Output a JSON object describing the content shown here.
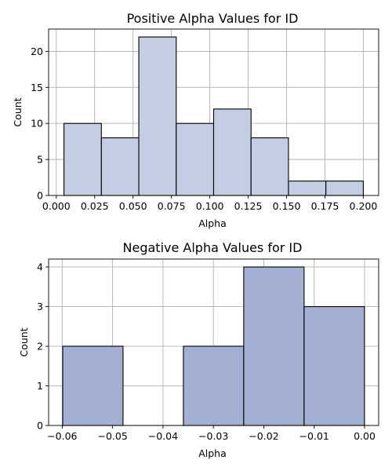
{
  "chart_data": [
    {
      "type": "bar",
      "title": "Positive Alpha Values for ID",
      "xlabel": "Alpha",
      "ylabel": "Count",
      "bin_edges": [
        0.005,
        0.029375,
        0.05375,
        0.078125,
        0.1025,
        0.126875,
        0.15125,
        0.175625,
        0.2
      ],
      "values": [
        10,
        8,
        22,
        10,
        12,
        8,
        2,
        2
      ],
      "xlim": [
        -0.005,
        0.21
      ],
      "ylim": [
        0,
        23.1
      ],
      "xticks": [
        0.0,
        0.025,
        0.05,
        0.075,
        0.1,
        0.125,
        0.15,
        0.175,
        0.2
      ],
      "xtick_labels": [
        "0.000",
        "0.025",
        "0.050",
        "0.075",
        "0.100",
        "0.125",
        "0.150",
        "0.175",
        "0.200"
      ],
      "yticks": [
        0,
        5,
        10,
        15,
        20
      ],
      "ytick_labels": [
        "0",
        "5",
        "10",
        "15",
        "20"
      ],
      "grid": true,
      "bar_color": "#c3cde3"
    },
    {
      "type": "bar",
      "title": "Negative Alpha Values for ID",
      "xlabel": "Alpha",
      "ylabel": "Count",
      "bin_edges": [
        -0.0599,
        -0.04793,
        -0.03595,
        -0.02398,
        -0.012,
        -2e-05
      ],
      "values": [
        2,
        0,
        2,
        4,
        3
      ],
      "xlim": [
        -0.0627,
        0.0028
      ],
      "ylim": [
        0,
        4.2
      ],
      "xticks": [
        -0.06,
        -0.05,
        -0.04,
        -0.03,
        -0.02,
        -0.01,
        0.0
      ],
      "xtick_labels": [
        "−0.06",
        "−0.05",
        "−0.04",
        "−0.03",
        "−0.02",
        "−0.01",
        "0.00"
      ],
      "yticks": [
        0,
        1,
        2,
        3,
        4
      ],
      "ytick_labels": [
        "0",
        "1",
        "2",
        "3",
        "4"
      ],
      "grid": true,
      "bar_color": "#a3b0d4"
    }
  ]
}
